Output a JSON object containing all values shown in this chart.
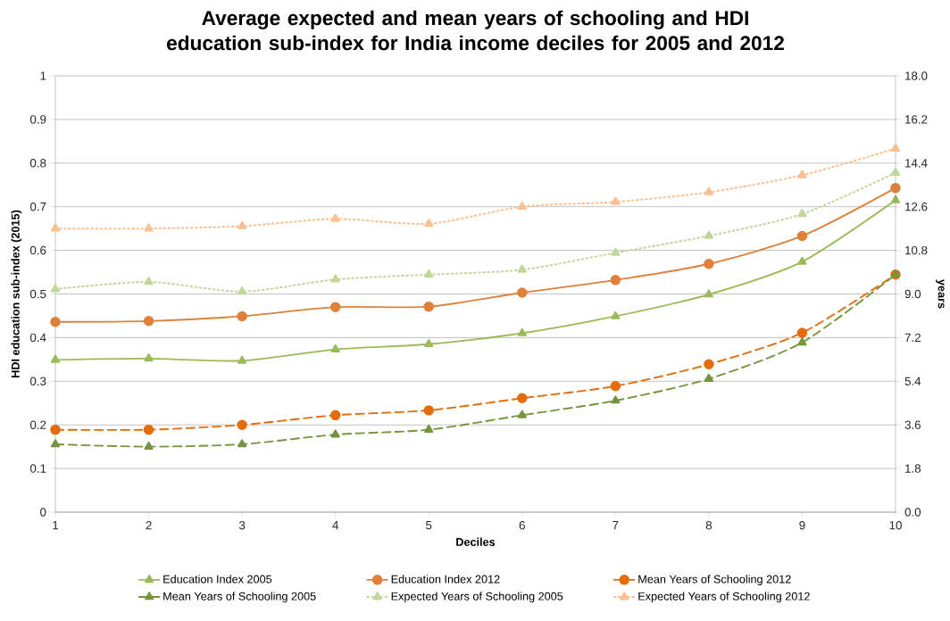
{
  "chart_data": {
    "type": "line",
    "title": "Average expected and mean years of schooling and HDI education sub-index for India income deciles for 2005 and 2012",
    "xlabel": "Deciles",
    "ylabel": "HDI education sub-index (2015)",
    "y2label": "years",
    "x": [
      1,
      2,
      3,
      4,
      5,
      6,
      7,
      8,
      9,
      10
    ],
    "xlim": [
      1,
      10
    ],
    "xticks": [
      1,
      2,
      3,
      4,
      5,
      6,
      7,
      8,
      9,
      10
    ],
    "ylim": [
      0,
      1
    ],
    "yticks": [
      0,
      0.1,
      0.2,
      0.3,
      0.4,
      0.5,
      0.6,
      0.7,
      0.8,
      0.9,
      1
    ],
    "y2lim": [
      0,
      18
    ],
    "y2ticks": [
      {
        "value": 0,
        "label": "0.0"
      },
      1.8,
      3.6,
      5.4,
      7.2,
      {
        "value": 9,
        "label": "9.0"
      },
      10.8,
      12.6,
      14.4,
      16.2,
      {
        "value": 18,
        "label": "18.0"
      }
    ],
    "grid": "y",
    "legend": "bottom",
    "series": [
      {
        "name": "Education Index 2005",
        "color": "#9bbb59",
        "marker": "triangle",
        "line_style": "solid",
        "values": [
          0.349,
          0.352,
          0.347,
          0.373,
          0.385,
          0.41,
          0.449,
          0.499,
          0.574,
          0.715
        ]
      },
      {
        "name": "Education Index 2012",
        "color": "#e0803a",
        "marker": "circle",
        "line_style": "solid",
        "values": [
          0.436,
          0.438,
          0.449,
          0.47,
          0.471,
          0.503,
          0.532,
          0.569,
          0.633,
          0.743
        ]
      },
      {
        "name": "Mean Years of Schooling 2012",
        "color": "#e46c0a",
        "marker": "circle",
        "line_style": "dashed",
        "axis": "y2",
        "values": [
          3.4,
          3.4,
          3.6,
          4.0,
          4.2,
          4.7,
          5.2,
          6.1,
          7.4,
          9.8
        ]
      },
      {
        "name": "Mean Years of Schooling 2005",
        "color": "#77933c",
        "marker": "triangle",
        "line_style": "dashed",
        "axis": "y2",
        "values": [
          2.8,
          2.7,
          2.8,
          3.2,
          3.4,
          4.0,
          4.6,
          5.5,
          7.0,
          9.8
        ]
      },
      {
        "name": "Expected Years of Schooling 2005",
        "color": "#c3d69b",
        "marker": "triangle",
        "line_style": "dotted",
        "axis": "y2",
        "values": [
          9.2,
          9.5,
          9.1,
          9.6,
          9.8,
          10.0,
          10.7,
          11.4,
          12.3,
          14.0
        ]
      },
      {
        "name": "Expected Years of Schooling 2012",
        "color": "#fac090",
        "marker": "triangle",
        "line_style": "dotted",
        "axis": "y2",
        "values": [
          11.7,
          11.7,
          11.8,
          12.1,
          11.9,
          12.6,
          12.8,
          13.2,
          13.9,
          15.0
        ]
      }
    ]
  }
}
